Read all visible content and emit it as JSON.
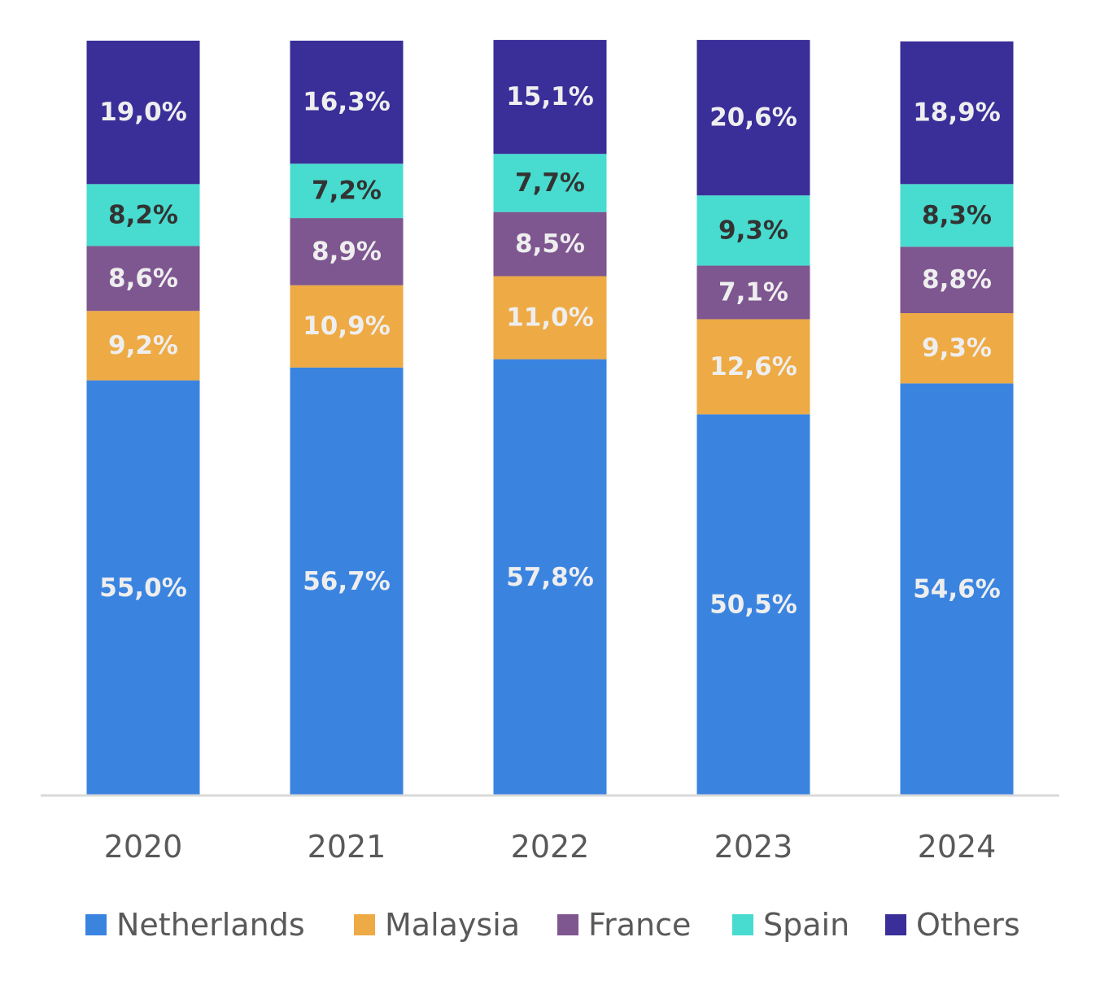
{
  "chart_data": {
    "type": "bar",
    "stacked": true,
    "categories": [
      "2020",
      "2021",
      "2022",
      "2023",
      "2024"
    ],
    "series": [
      {
        "name": "Netherlands",
        "color": "#3A84E0",
        "label_color": "#EEEEEE",
        "values": [
          55.0,
          56.7,
          57.8,
          50.5,
          54.6
        ],
        "labels": [
          "55,0%",
          "56,7%",
          "57,8%",
          "50,5%",
          "54,6%"
        ]
      },
      {
        "name": "Malaysia",
        "color": "#EEAA44",
        "label_color": "#EEEEEE",
        "values": [
          9.2,
          10.9,
          11.0,
          12.6,
          9.3
        ],
        "labels": [
          "9,2%",
          "10,9%",
          "11,0%",
          "12,6%",
          "9,3%"
        ]
      },
      {
        "name": "France",
        "color": "#7E5690",
        "label_color": "#EEEEEE",
        "values": [
          8.6,
          8.9,
          8.5,
          7.1,
          8.8
        ],
        "labels": [
          "8,6%",
          "8,9%",
          "8,5%",
          "7,1%",
          "8,8%"
        ]
      },
      {
        "name": "Spain",
        "color": "#47DCCF",
        "label_color": "#333333",
        "values": [
          8.2,
          7.2,
          7.7,
          9.3,
          8.3
        ],
        "labels": [
          "8,2%",
          "7,2%",
          "7,7%",
          "9,3%",
          "8,3%"
        ]
      },
      {
        "name": "Others",
        "color": "#3A2E99",
        "label_color": "#EEEEEE",
        "values": [
          19.0,
          16.3,
          15.1,
          20.6,
          18.9
        ],
        "labels": [
          "19,0%",
          "16,3%",
          "15,1%",
          "20,6%",
          "18,9%"
        ]
      }
    ],
    "ylim": [
      0,
      100
    ],
    "grid": false,
    "legend_position": "bottom",
    "axis_color": "#D9D9D9"
  }
}
